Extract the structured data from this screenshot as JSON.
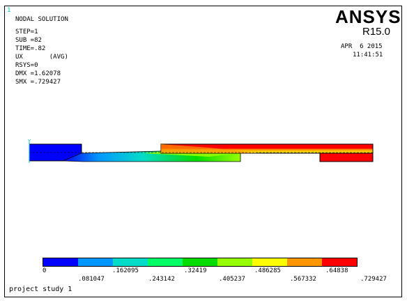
{
  "window_number": "1",
  "header": {
    "title": "NODAL SOLUTION",
    "step": "STEP=1",
    "sub": "SUB =82",
    "time": "TIME=.82",
    "component": "UX       (AVG)",
    "rsys": "RSYS=0",
    "dmx": "DMX =1.62078",
    "smx": "SMX =.729427"
  },
  "logo": {
    "name": "ANSYS",
    "release": "R15.0",
    "date": "APR  6 2015",
    "time": "11:41:51"
  },
  "legend": {
    "colors": [
      "#0000ff",
      "#0096ff",
      "#00dcc8",
      "#00ff64",
      "#00dc00",
      "#96ff00",
      "#ffff00",
      "#ff9600",
      "#ff0000"
    ],
    "labels_top": [
      "0",
      ".162095",
      ".32419",
      ".486285",
      ".64838"
    ],
    "labels_bottom": [
      ".081047",
      ".243142",
      ".405237",
      ".567332",
      ".729427"
    ]
  },
  "footer": {
    "title": "project study 1"
  }
}
